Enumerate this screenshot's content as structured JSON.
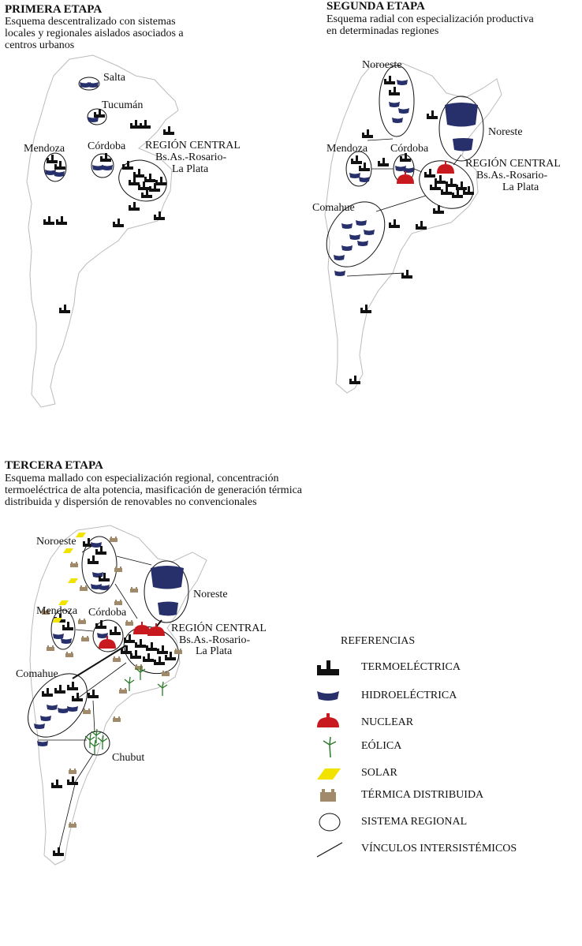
{
  "stages": [
    {
      "title": "PRIMERA ETAPA",
      "description_lines": [
        "Esquema descentralizado con sistemas",
        "locales y regionales aislados asociados a",
        "centros urbanos"
      ],
      "regions": [
        "Salta",
        "Tucumán",
        "Mendoza",
        "Córdoba",
        "REGIÓN CENTRAL",
        "Bs.As.-Rosario-",
        "La Plata"
      ]
    },
    {
      "title": "SEGUNDA ETAPA",
      "description_lines": [
        "Esquema radial con especialización productiva",
        "en determinadas regiones"
      ],
      "regions": [
        "Noroeste",
        "Noreste",
        "Mendoza",
        "Córdoba",
        "REGIÓN CENTRAL",
        "Bs.As.-Rosario-",
        "La Plata",
        "Comahue"
      ]
    },
    {
      "title": "TERCERA ETAPA",
      "description_lines": [
        "Esquema mallado con especialización regional, concentración",
        "termoeléctrica de alta potencia, masificación de generación térmica",
        "distribuida y dispersión de renovables no convencionales"
      ],
      "regions": [
        "Noroeste",
        "Noreste",
        "Mendoza",
        "Córdoba",
        "REGIÓN CENTRAL",
        "Bs.As.-Rosario-",
        "La Plata",
        "Comahue",
        "Chubut"
      ]
    }
  ],
  "legend": {
    "title": "REFERENCIAS",
    "items": [
      {
        "label": "TERMOELÉCTRICA",
        "icon": "thermal-plant-icon",
        "color": "#111111"
      },
      {
        "label": "HIDROELÉCTRICA",
        "icon": "hydro-plant-icon",
        "color": "#27306b"
      },
      {
        "label": "NUCLEAR",
        "icon": "nuclear-plant-icon",
        "color": "#c8191e"
      },
      {
        "label": "EÓLICA",
        "icon": "wind-turbine-icon",
        "color": "#2a7a2a"
      },
      {
        "label": "SOLAR",
        "icon": "solar-panel-icon",
        "color": "#f2e200"
      },
      {
        "label": "TÉRMICA DISTRIBUIDA",
        "icon": "distributed-thermal-icon",
        "color": "#a08a6a"
      },
      {
        "label": "SISTEMA REGIONAL",
        "icon": "regional-system-icon",
        "color": "#111111"
      },
      {
        "label": "VÍNCULOS INTERSISTÉMICOS",
        "icon": "intersystem-link-icon",
        "color": "#111111"
      }
    ]
  }
}
